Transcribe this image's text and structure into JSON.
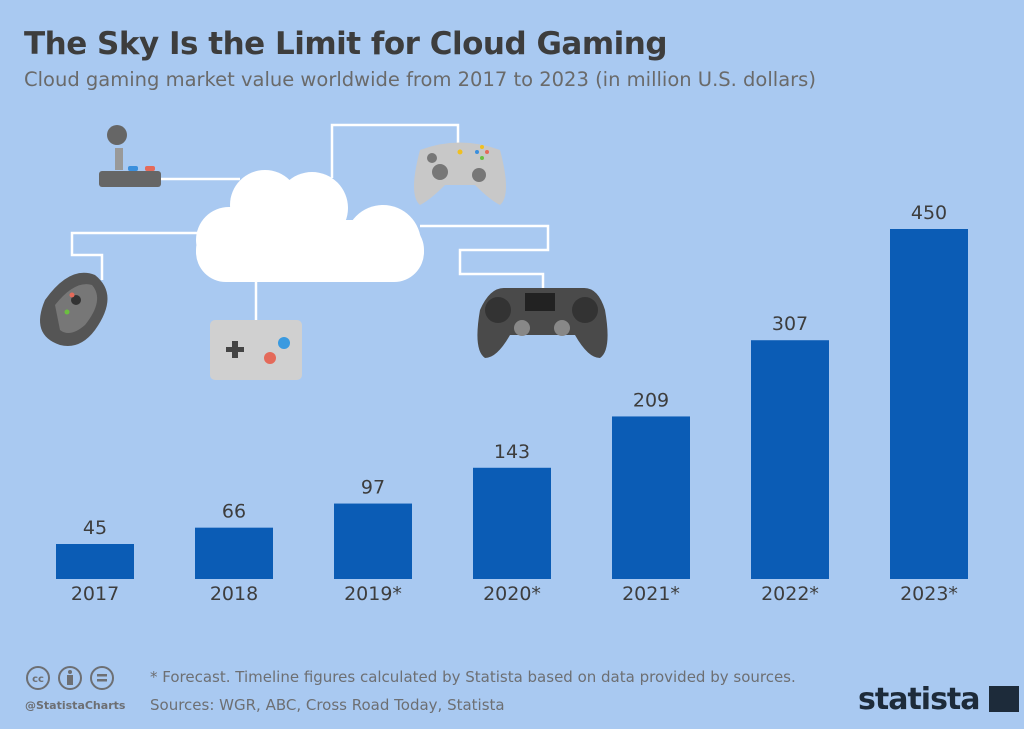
{
  "title": "The Sky Is the Limit for Cloud Gaming",
  "subtitle": "Cloud gaming market value worldwide from 2017 to 2023 (in million U.S. dollars)",
  "colors": {
    "background": "#a9c9f1",
    "bar": "#0b5cb5",
    "text": "#3d3d3d"
  },
  "chart_data": {
    "type": "bar",
    "categories": [
      "2017",
      "2018",
      "2019*",
      "2020*",
      "2021*",
      "2022*",
      "2023*"
    ],
    "values": [
      45,
      66,
      97,
      143,
      209,
      307,
      450
    ],
    "title": "The Sky Is the Limit for Cloud Gaming",
    "xlabel": "",
    "ylabel": "",
    "ylim": [
      0,
      450
    ],
    "grid": false,
    "data_labels": true
  },
  "illustration_icons": [
    "cloud-icon",
    "arcade-joystick-icon",
    "xbox-controller-icon",
    "gaming-mouse-icon",
    "gamepad-icon",
    "playstation-controller-icon"
  ],
  "footer": {
    "note": "* Forecast. Timeline figures calculated by Statista based on data provided by sources.",
    "sources": "Sources: WGR, ABC, Cross Road Today, Statista",
    "handle": "@StatistaCharts",
    "logo": "statista"
  }
}
